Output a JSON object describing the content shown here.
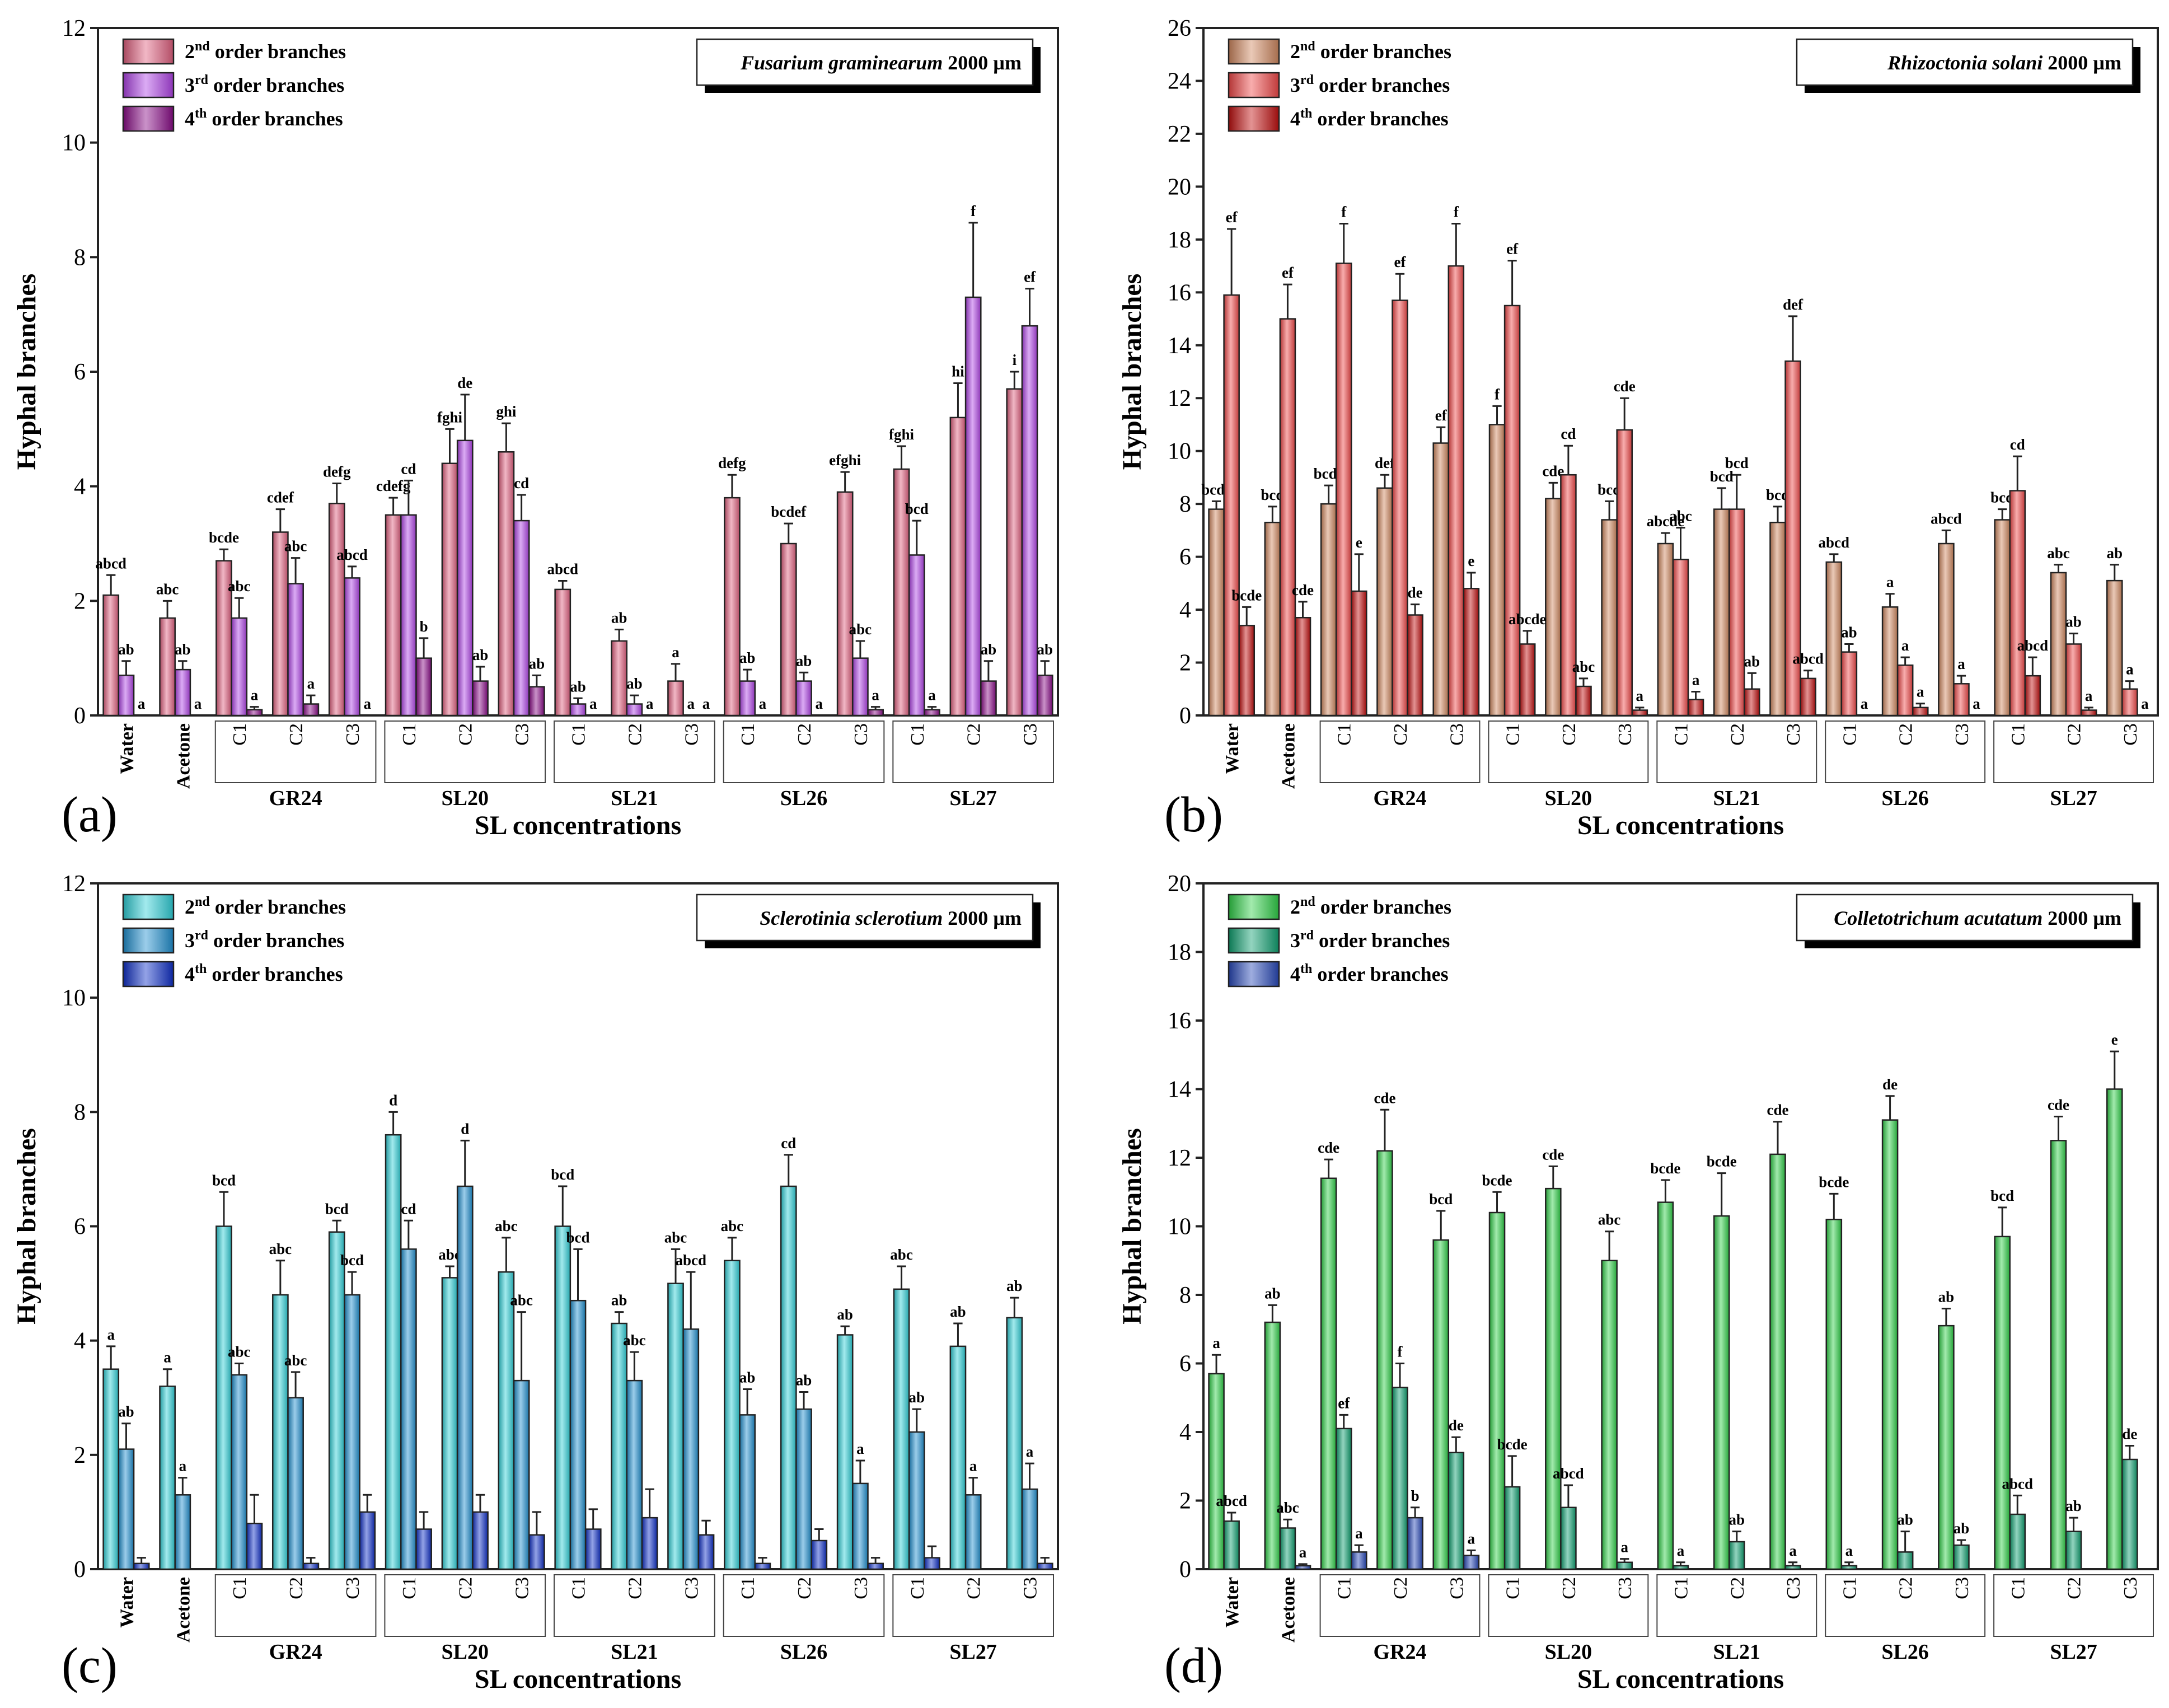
{
  "figure": {
    "panel_labels": [
      "(a)",
      "(b)",
      "(c)",
      "(d)"
    ],
    "legend_order_suffix": " order branches",
    "legend_ordinals": [
      [
        "2",
        "nd"
      ],
      [
        "3",
        "rd"
      ],
      [
        "4",
        "th"
      ]
    ],
    "sl_groups": [
      "GR24",
      "SL20",
      "SL21",
      "SL26",
      "SL27"
    ],
    "sub_concentrations": [
      "C1",
      "C2",
      "C3"
    ],
    "controls": [
      "Water",
      "Acetone"
    ]
  },
  "chart_data": [
    {
      "type": "bar",
      "title": "Fusarium graminearum 2000 µm",
      "title_species": "Fusarium graminearum",
      "title_scale": "2000 µm",
      "xlabel": "SL concentrations",
      "ylabel": "Hyphal branches",
      "ylim": [
        0,
        12
      ],
      "yticks": [
        0,
        2,
        4,
        6,
        8,
        10,
        12
      ],
      "categories": [
        "Water",
        "Acetone",
        "C1",
        "C2",
        "C3",
        "C1",
        "C2",
        "C3",
        "C1",
        "C2",
        "C3",
        "C1",
        "C2",
        "C3",
        "C1",
        "C2",
        "C3"
      ],
      "groups": [
        "GR24",
        "SL20",
        "SL21",
        "SL26",
        "SL27"
      ],
      "colors": [
        "#e0607f",
        "#b044e6",
        "#8a0c88"
      ],
      "series": [
        {
          "name": "2nd order branches",
          "values": [
            2.1,
            1.7,
            2.7,
            3.2,
            3.7,
            3.5,
            4.4,
            4.6,
            2.2,
            1.3,
            0.6,
            3.8,
            3.0,
            3.9,
            4.3,
            5.2,
            5.7
          ],
          "errors": [
            0.35,
            0.3,
            0.2,
            0.4,
            0.35,
            0.3,
            0.6,
            0.5,
            0.15,
            0.2,
            0.3,
            0.4,
            0.35,
            0.35,
            0.4,
            0.6,
            0.3
          ],
          "letters": [
            "abcd",
            "abc",
            "bcde",
            "cdef",
            "defg",
            "cdefg",
            "fghi",
            "ghi",
            "abcd",
            "ab",
            "a",
            "defg",
            "bcdef",
            "efghi",
            "fghi",
            "hi",
            "i"
          ]
        },
        {
          "name": "3rd order branches",
          "values": [
            0.7,
            0.8,
            1.7,
            2.3,
            2.4,
            3.5,
            4.8,
            3.4,
            0.2,
            0.2,
            0,
            0.6,
            0.6,
            1.0,
            2.8,
            7.3,
            6.8
          ],
          "errors": [
            0.25,
            0.15,
            0.35,
            0.45,
            0.2,
            0.6,
            0.8,
            0.45,
            0.1,
            0.15,
            0,
            0.2,
            0.15,
            0.3,
            0.6,
            1.3,
            0.65
          ],
          "letters": [
            "ab",
            "ab",
            "abc",
            "abc",
            "abcd",
            "cd",
            "de",
            "cd",
            "ab",
            "ab",
            "a",
            "ab",
            "ab",
            "abc",
            "bcd",
            "f",
            "ef"
          ]
        },
        {
          "name": "4th order branches",
          "values": [
            0,
            0,
            0.1,
            0.2,
            0,
            1.0,
            0.6,
            0.5,
            0,
            0,
            0,
            0,
            0,
            0.1,
            0.1,
            0.6,
            0.7
          ],
          "errors": [
            0,
            0,
            0.05,
            0.15,
            0,
            0.35,
            0.25,
            0.2,
            0,
            0,
            0,
            0,
            0,
            0.05,
            0.05,
            0.35,
            0.25
          ],
          "letters": [
            "a",
            "a",
            "a",
            "a",
            "a",
            "b",
            "ab",
            "ab",
            "a",
            "a",
            "a",
            "a",
            "a",
            "a",
            "a",
            "ab",
            "ab"
          ]
        }
      ]
    },
    {
      "type": "bar",
      "title": "Rhizoctonia solani 2000 µm",
      "title_species": "Rhizoctonia solani",
      "title_scale": "2000 µm",
      "xlabel": "SL concentrations",
      "ylabel": "Hyphal branches",
      "ylim": [
        0,
        26
      ],
      "yticks": [
        0,
        2,
        4,
        6,
        8,
        10,
        12,
        14,
        16,
        18,
        20,
        22,
        24,
        26
      ],
      "categories": [
        "Water",
        "Acetone",
        "C1",
        "C2",
        "C3",
        "C1",
        "C2",
        "C3",
        "C1",
        "C2",
        "C3",
        "C1",
        "C2",
        "C3",
        "C1",
        "C2",
        "C3"
      ],
      "groups": [
        "GR24",
        "SL20",
        "SL21",
        "SL26",
        "SL27"
      ],
      "colors": [
        "#d08860",
        "#f04848",
        "#c01010"
      ],
      "series": [
        {
          "name": "2nd order branches",
          "values": [
            7.8,
            7.3,
            8.0,
            8.6,
            10.3,
            11.0,
            8.2,
            7.4,
            6.5,
            7.8,
            7.3,
            5.8,
            4.1,
            6.5,
            7.4,
            5.4,
            5.1
          ],
          "errors": [
            0.3,
            0.6,
            0.7,
            0.5,
            0.6,
            0.7,
            0.6,
            0.7,
            0.4,
            0.8,
            0.6,
            0.3,
            0.5,
            0.5,
            0.4,
            0.3,
            0.6
          ],
          "letters": [
            "bcde",
            "bcd",
            "bcde",
            "def",
            "ef",
            "f",
            "cde",
            "bcd",
            "abcde",
            "bcd",
            "bcd",
            "abcd",
            "a",
            "abcd",
            "bcd",
            "abc",
            "ab"
          ]
        },
        {
          "name": "3rd order branches",
          "values": [
            15.9,
            15.0,
            17.1,
            15.7,
            17.0,
            15.5,
            9.1,
            10.8,
            5.9,
            7.8,
            13.4,
            2.4,
            1.9,
            1.2,
            8.5,
            2.7,
            1.0
          ],
          "errors": [
            2.5,
            1.3,
            1.5,
            1.0,
            1.6,
            1.7,
            1.1,
            1.2,
            1.2,
            1.3,
            1.7,
            0.3,
            0.3,
            0.3,
            1.3,
            0.4,
            0.3
          ],
          "letters": [
            "ef",
            "ef",
            "f",
            "ef",
            "f",
            "ef",
            "cd",
            "cde",
            "abc",
            "bcd",
            "def",
            "ab",
            "a",
            "a",
            "cd",
            "ab",
            "a"
          ]
        },
        {
          "name": "4th order branches",
          "values": [
            3.4,
            3.7,
            4.7,
            3.8,
            4.8,
            2.7,
            1.1,
            0.2,
            0.6,
            1.0,
            1.4,
            0,
            0.3,
            0,
            1.5,
            0.2,
            0
          ],
          "errors": [
            0.7,
            0.6,
            1.4,
            0.4,
            0.6,
            0.5,
            0.3,
            0.1,
            0.3,
            0.6,
            0.3,
            0,
            0.15,
            0,
            0.7,
            0.1,
            0
          ],
          "letters": [
            "bcde",
            "cde",
            "e",
            "de",
            "e",
            "abcde",
            "abc",
            "a",
            "a",
            "ab",
            "abcd",
            "a",
            "a",
            "a",
            "abcd",
            "a",
            "a"
          ]
        }
      ]
    },
    {
      "type": "bar",
      "title": "Sclerotinia sclerotium 2000 µm",
      "title_species": "Sclerotinia sclerotium",
      "title_scale": "2000 µm",
      "xlabel": "SL concentrations",
      "ylabel": "Hyphal branches",
      "ylim": [
        0,
        12
      ],
      "yticks": [
        0,
        2,
        4,
        6,
        8,
        10,
        12
      ],
      "categories": [
        "Water",
        "Acetone",
        "C1",
        "C2",
        "C3",
        "C1",
        "C2",
        "C3",
        "C1",
        "C2",
        "C3",
        "C1",
        "C2",
        "C3",
        "C1",
        "C2",
        "C3"
      ],
      "groups": [
        "GR24",
        "SL20",
        "SL21",
        "SL26",
        "SL27"
      ],
      "colors": [
        "#30d0d8",
        "#2090d0",
        "#1030c8"
      ],
      "series": [
        {
          "name": "2nd order branches",
          "values": [
            3.5,
            3.2,
            6.0,
            4.8,
            5.9,
            7.6,
            5.1,
            5.2,
            6.0,
            4.3,
            5.0,
            5.4,
            6.7,
            4.1,
            4.9,
            3.9,
            4.4
          ],
          "errors": [
            0.4,
            0.3,
            0.6,
            0.6,
            0.2,
            0.4,
            0.2,
            0.6,
            0.7,
            0.2,
            0.6,
            0.4,
            0.55,
            0.15,
            0.4,
            0.4,
            0.35
          ],
          "letters": [
            "a",
            "a",
            "bcd",
            "abc",
            "bcd",
            "d",
            "abc",
            "abc",
            "bcd",
            "ab",
            "abc",
            "abc",
            "cd",
            "ab",
            "abc",
            "ab",
            "ab"
          ]
        },
        {
          "name": "3rd order branches",
          "values": [
            2.1,
            1.3,
            3.4,
            3.0,
            4.8,
            5.6,
            6.7,
            3.3,
            4.7,
            3.3,
            4.2,
            2.7,
            2.8,
            1.5,
            2.4,
            1.3,
            1.4
          ],
          "errors": [
            0.45,
            0.3,
            0.2,
            0.45,
            0.4,
            0.5,
            0.8,
            1.2,
            0.9,
            0.5,
            1.0,
            0.45,
            0.3,
            0.4,
            0.4,
            0.3,
            0.45
          ],
          "letters": [
            "ab",
            "a",
            "abc",
            "abc",
            "bcd",
            "cd",
            "d",
            "abc",
            "bcd",
            "abc",
            "abcd",
            "ab",
            "ab",
            "a",
            "ab",
            "a",
            "a"
          ]
        },
        {
          "name": "4th order branches",
          "values": [
            0.1,
            0,
            0.8,
            0.1,
            1.0,
            0.7,
            1.0,
            0.6,
            0.7,
            0.9,
            0.6,
            0.1,
            0.5,
            0.1,
            0.2,
            0,
            0.1
          ],
          "errors": [
            0.1,
            0,
            0.5,
            0.1,
            0.3,
            0.3,
            0.3,
            0.4,
            0.35,
            0.5,
            0.25,
            0.1,
            0.2,
            0.1,
            0.2,
            0,
            0.1
          ],
          "letters": [
            "",
            "",
            "",
            "",
            "",
            "",
            "",
            "",
            "",
            "",
            "",
            "",
            "",
            "",
            "",
            "",
            ""
          ]
        }
      ]
    },
    {
      "type": "bar",
      "title": "Colletotrichum acutatum 2000 µm",
      "title_species": "Colletotrichum acutatum",
      "title_scale": "2000 µm",
      "xlabel": "SL concentrations",
      "ylabel": "Hyphal branches",
      "ylim": [
        0,
        20
      ],
      "yticks": [
        0,
        2,
        4,
        6,
        8,
        10,
        12,
        14,
        16,
        18,
        20
      ],
      "categories": [
        "Water",
        "Acetone",
        "C1",
        "C2",
        "C3",
        "C1",
        "C2",
        "C3",
        "C1",
        "C2",
        "C3",
        "C1",
        "C2",
        "C3",
        "C1",
        "C2",
        "C3"
      ],
      "groups": [
        "GR24",
        "SL20",
        "SL21",
        "SL26",
        "SL27"
      ],
      "colors": [
        "#30d048",
        "#10a070",
        "#2848b8"
      ],
      "series": [
        {
          "name": "2nd order branches",
          "values": [
            5.7,
            7.2,
            11.4,
            12.2,
            9.6,
            10.4,
            11.1,
            9.0,
            10.7,
            10.3,
            12.1,
            10.2,
            13.1,
            7.1,
            9.7,
            12.5,
            14.0
          ],
          "errors": [
            0.55,
            0.5,
            0.55,
            1.2,
            0.85,
            0.6,
            0.65,
            0.85,
            0.65,
            1.25,
            0.95,
            0.75,
            0.7,
            0.5,
            0.85,
            0.7,
            1.1
          ],
          "letters": [
            "a",
            "ab",
            "cde",
            "cde",
            "bcd",
            "bcde",
            "cde",
            "abc",
            "bcde",
            "bcde",
            "cde",
            "bcde",
            "de",
            "ab",
            "bcd",
            "cde",
            "e"
          ]
        },
        {
          "name": "3rd order branches",
          "values": [
            1.4,
            1.2,
            4.1,
            5.3,
            3.4,
            2.4,
            1.8,
            0.2,
            0.1,
            0.8,
            0.1,
            0.1,
            0.5,
            0.7,
            1.6,
            1.1,
            3.2
          ],
          "errors": [
            0.25,
            0.25,
            0.4,
            0.7,
            0.45,
            0.9,
            0.65,
            0.1,
            0.1,
            0.3,
            0.1,
            0.1,
            0.6,
            0.15,
            0.55,
            0.4,
            0.4
          ],
          "letters": [
            "abcd",
            "abc",
            "ef",
            "f",
            "de",
            "bcde",
            "abcd",
            "a",
            "a",
            "ab",
            "a",
            "a",
            "ab",
            "ab",
            "abcd",
            "ab",
            "de"
          ]
        },
        {
          "name": "4th order branches",
          "values": [
            0,
            0.1,
            0.5,
            1.5,
            0.4,
            0,
            0,
            0,
            0,
            0,
            0,
            0,
            0,
            0,
            0,
            0,
            0
          ],
          "errors": [
            0,
            0.05,
            0.2,
            0.3,
            0.15,
            0,
            0,
            0,
            0,
            0,
            0,
            0,
            0,
            0,
            0,
            0,
            0
          ],
          "letters": [
            "",
            "a",
            "a",
            "b",
            "a",
            "",
            "",
            "",
            "",
            "",
            "",
            "",
            "",
            "",
            "",
            "",
            ""
          ]
        }
      ]
    }
  ]
}
